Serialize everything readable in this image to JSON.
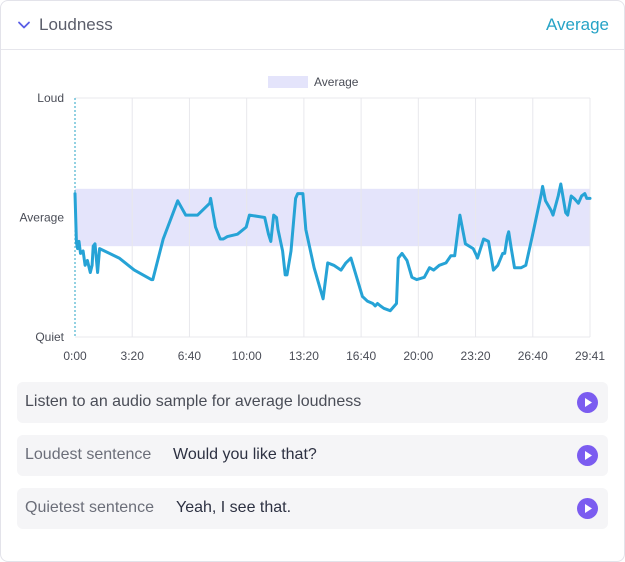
{
  "header": {
    "title": "Loudness",
    "value": "Average",
    "accent": "#26a3c6"
  },
  "chart_data": {
    "type": "line",
    "legend": [
      "Average"
    ],
    "y_tick_labels": [
      "Loud",
      "Average",
      "Quiet"
    ],
    "x_tick_labels": [
      "0:00",
      "3:20",
      "6:40",
      "10:00",
      "13:20",
      "16:40",
      "20:00",
      "23:20",
      "26:40",
      "29:41"
    ],
    "xlim_seconds": [
      0,
      1781
    ],
    "ylim": [
      0,
      1
    ],
    "average_band": [
      0.38,
      0.62
    ],
    "grid": true,
    "legend_position": "top-center",
    "band_color": "#e4e4fb",
    "line_color": "#26a3d6",
    "series": [
      {
        "name": "Average",
        "points": [
          [
            0,
            0.6
          ],
          [
            5,
            0.4
          ],
          [
            9,
            0.37
          ],
          [
            14,
            0.4
          ],
          [
            19,
            0.35
          ],
          [
            28,
            0.36
          ],
          [
            35,
            0.3
          ],
          [
            43,
            0.32
          ],
          [
            53,
            0.27
          ],
          [
            59,
            0.3
          ],
          [
            63,
            0.38
          ],
          [
            69,
            0.39
          ],
          [
            78,
            0.27
          ],
          [
            85,
            0.37
          ],
          [
            153,
            0.33
          ],
          [
            205,
            0.28
          ],
          [
            264,
            0.24
          ],
          [
            269,
            0.24
          ],
          [
            305,
            0.41
          ],
          [
            355,
            0.57
          ],
          [
            383,
            0.51
          ],
          [
            424,
            0.51
          ],
          [
            466,
            0.56
          ],
          [
            469,
            0.58
          ],
          [
            486,
            0.46
          ],
          [
            502,
            0.41
          ],
          [
            513,
            0.41
          ],
          [
            527,
            0.42
          ],
          [
            562,
            0.43
          ],
          [
            592,
            0.46
          ],
          [
            603,
            0.51
          ],
          [
            656,
            0.5
          ],
          [
            669,
            0.43
          ],
          [
            677,
            0.4
          ],
          [
            687,
            0.51
          ],
          [
            697,
            0.5
          ],
          [
            702,
            0.45
          ],
          [
            718,
            0.36
          ],
          [
            727,
            0.26
          ],
          [
            733,
            0.26
          ],
          [
            747,
            0.36
          ],
          [
            763,
            0.58
          ],
          [
            770,
            0.6
          ],
          [
            788,
            0.6
          ],
          [
            798,
            0.45
          ],
          [
            827,
            0.29
          ],
          [
            858,
            0.16
          ],
          [
            874,
            0.31
          ],
          [
            895,
            0.3
          ],
          [
            920,
            0.28
          ],
          [
            937,
            0.31
          ],
          [
            954,
            0.33
          ],
          [
            994,
            0.17
          ],
          [
            1011,
            0.15
          ],
          [
            1030,
            0.14
          ],
          [
            1038,
            0.13
          ],
          [
            1046,
            0.14
          ],
          [
            1056,
            0.13
          ],
          [
            1068,
            0.12
          ],
          [
            1090,
            0.11
          ],
          [
            1112,
            0.14
          ],
          [
            1118,
            0.33
          ],
          [
            1131,
            0.35
          ],
          [
            1148,
            0.32
          ],
          [
            1165,
            0.25
          ],
          [
            1182,
            0.24
          ],
          [
            1208,
            0.25
          ],
          [
            1226,
            0.29
          ],
          [
            1240,
            0.28
          ],
          [
            1260,
            0.3
          ],
          [
            1283,
            0.31
          ],
          [
            1300,
            0.34
          ],
          [
            1313,
            0.34
          ],
          [
            1331,
            0.51
          ],
          [
            1350,
            0.39
          ],
          [
            1377,
            0.37
          ],
          [
            1389,
            0.34
          ],
          [
            1392,
            0.33
          ],
          [
            1413,
            0.41
          ],
          [
            1430,
            0.4
          ],
          [
            1440,
            0.33
          ],
          [
            1447,
            0.28
          ],
          [
            1462,
            0.3
          ],
          [
            1479,
            0.35
          ],
          [
            1486,
            0.35
          ],
          [
            1495,
            0.42
          ],
          [
            1500,
            0.44
          ],
          [
            1509,
            0.37
          ],
          [
            1520,
            0.29
          ],
          [
            1539,
            0.29
          ],
          [
            1543,
            0.29
          ],
          [
            1559,
            0.3
          ],
          [
            1581,
            0.42
          ],
          [
            1613,
            0.6
          ],
          [
            1617,
            0.63
          ],
          [
            1627,
            0.57
          ],
          [
            1646,
            0.53
          ],
          [
            1653,
            0.51
          ],
          [
            1671,
            0.59
          ],
          [
            1680,
            0.64
          ],
          [
            1697,
            0.52
          ],
          [
            1704,
            0.51
          ],
          [
            1716,
            0.59
          ],
          [
            1726,
            0.58
          ],
          [
            1741,
            0.56
          ],
          [
            1752,
            0.59
          ],
          [
            1763,
            0.6
          ],
          [
            1770,
            0.58
          ],
          [
            1781,
            0.58
          ]
        ]
      }
    ]
  },
  "rows": [
    {
      "label": "Listen to an audio sample for average loudness",
      "value": ""
    },
    {
      "label": "Loudest sentence",
      "value": "Would you like that?"
    },
    {
      "label": "Quietest sentence",
      "value": "Yeah, I see that."
    }
  ],
  "play_icon_color": "#7b5cf0"
}
